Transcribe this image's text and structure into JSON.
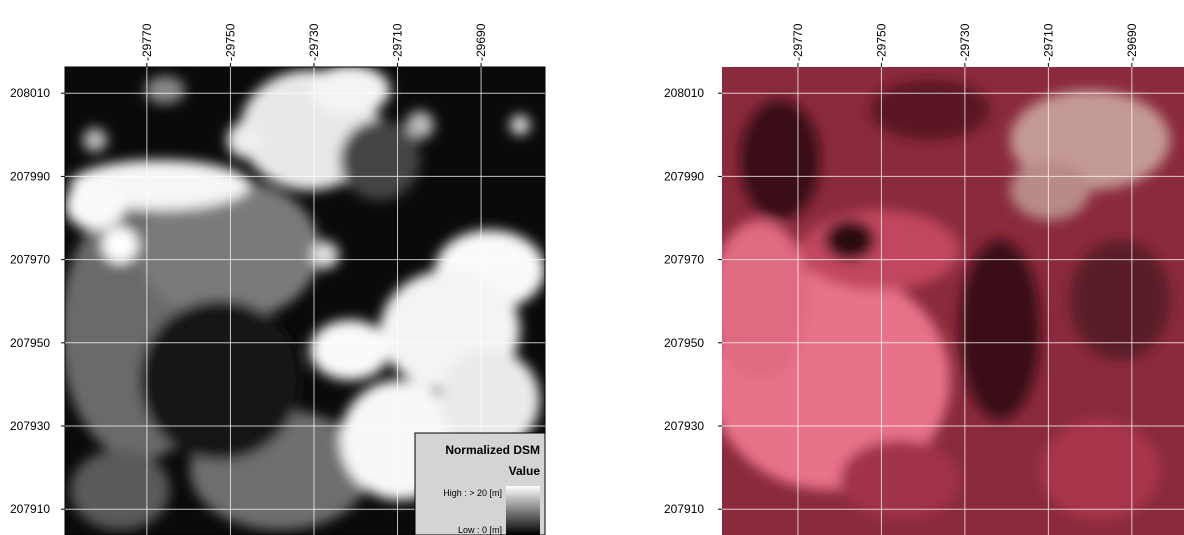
{
  "panels": [
    {
      "xlim": [
        -29789.6,
        -29674.7
      ],
      "ylim": [
        207903.8,
        208016.3
      ],
      "xticks": [
        -29770,
        -29750,
        -29730,
        -29710,
        -29690
      ],
      "yticks": [
        208010,
        207990,
        207970,
        207950,
        207930,
        207910
      ]
    },
    {
      "xlim": [
        -29788.2,
        -29677.5
      ],
      "ylim": [
        207903.8,
        208016.3
      ],
      "xticks": [
        -29770,
        -29750,
        -29730,
        -29710,
        -29690
      ],
      "yticks": [
        208010,
        207990,
        207970,
        207950,
        207930,
        207910
      ]
    }
  ],
  "legend": {
    "title": "Normalized DSM",
    "subtitle": "Value",
    "high": "High : > 20 [m]",
    "low": "Low : 0 [m]"
  }
}
